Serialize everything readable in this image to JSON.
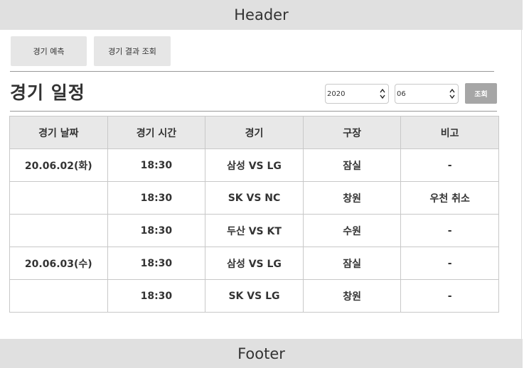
{
  "header": {
    "title": "Header"
  },
  "footer": {
    "title": "Footer"
  },
  "tabs": [
    {
      "label": "경기 예측"
    },
    {
      "label": "경기 결과 조회"
    }
  ],
  "page_title": "경기 일정",
  "filters": {
    "year": "2020",
    "month": "06",
    "search_label": "조회"
  },
  "table": {
    "headers": [
      "경기 날짜",
      "경기 시간",
      "경기",
      "구장",
      "비고"
    ],
    "rows": [
      {
        "date": "20.06.02(화)",
        "time": "18:30",
        "match": "삼성 VS LG",
        "stadium": "잠실",
        "note": "-"
      },
      {
        "date": "",
        "time": "18:30",
        "match": "SK VS NC",
        "stadium": "창원",
        "note": "우천 취소"
      },
      {
        "date": "",
        "time": "18:30",
        "match": "두산 VS KT",
        "stadium": "수원",
        "note": "-"
      },
      {
        "date": "20.06.03(수)",
        "time": "18:30",
        "match": "삼성 VS LG",
        "stadium": "잠실",
        "note": "-"
      },
      {
        "date": "",
        "time": "18:30",
        "match": "SK VS LG",
        "stadium": "창원",
        "note": "-"
      }
    ]
  }
}
